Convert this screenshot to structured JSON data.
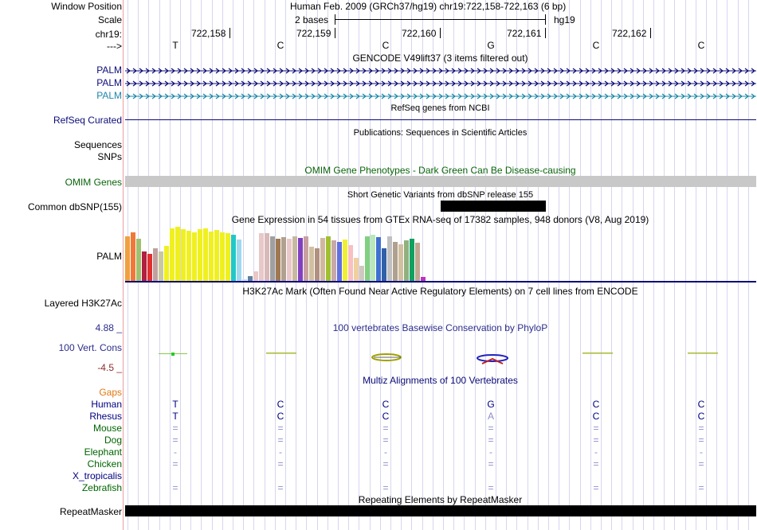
{
  "header": {
    "window_position_label": "Window Position",
    "window_position_value": "Human Feb. 2009 (GRCh37/hg19)   chr19:722,158-722,163 (6 bp)",
    "scale_label": "Scale",
    "scale_left": "2 bases",
    "scale_right": "hg19",
    "chrom_label": "chr19:",
    "strand_label": "--->",
    "positions": [
      "722,158",
      "722,159",
      "722,160",
      "722,161",
      "722,162"
    ],
    "bases": [
      "T",
      "C",
      "C",
      "G",
      "C",
      "C"
    ]
  },
  "gencode": {
    "title": "GENCODE V49lift37 (3 items filtered out)",
    "tracks": [
      {
        "label": "PALM",
        "color": "#0c0c78"
      },
      {
        "label": "PALM",
        "color": "#0c0c78"
      },
      {
        "label": "PALM",
        "color": "#1c88a8"
      }
    ]
  },
  "refseq": {
    "title": "RefSeq genes from NCBI",
    "label": "RefSeq Curated",
    "color": "#0c0c78"
  },
  "publications": {
    "title": "Publications: Sequences in Scientific Articles",
    "label1": "Sequences",
    "label2": "SNPs"
  },
  "omim": {
    "title": "OMIM Gene Phenotypes - Dark Green Can Be Disease-causing",
    "label": "OMIM Genes",
    "color": "#0a640a"
  },
  "dbsnp": {
    "title": "Short Genetic Variants from dbSNP release 155",
    "label": "Common dbSNP(155)"
  },
  "gtex": {
    "title": "Gene Expression in 54 tissues from GTEx RNA-seq of 17382 samples, 948 donors (V8, Aug 2019)",
    "label": "PALM",
    "values": [
      58,
      63,
      55,
      38,
      35,
      42,
      38,
      45,
      68,
      70,
      67,
      65,
      63,
      67,
      68,
      64,
      66,
      63,
      62,
      60,
      54,
      2,
      6,
      12,
      62,
      62,
      58,
      55,
      57,
      55,
      58,
      56,
      58,
      44,
      42,
      56,
      58,
      52,
      50,
      54,
      46,
      30,
      20,
      58,
      60,
      57,
      42,
      58,
      50,
      47,
      53,
      55,
      49,
      5
    ],
    "colors": [
      "#f0a040",
      "#f07838",
      "#a0c070",
      "#b02040",
      "#e03030",
      "#c0a0a0",
      "#c8c8a0",
      "#f0f020",
      "#f0f020",
      "#f0f020",
      "#f0f020",
      "#f0f020",
      "#f0f020",
      "#f0f020",
      "#f0f020",
      "#f0f020",
      "#f0f020",
      "#f0f020",
      "#f0f020",
      "#20c8c8",
      "#a0d8f0",
      "#c8e0f0",
      "#6080a0",
      "#e8c8c8",
      "#e8c8c8",
      "#d8b8b8",
      "#a0a0a0",
      "#a07850",
      "#b0a090",
      "#e8c8c8",
      "#c8b8a0",
      "#8040c0",
      "#c8a0a0",
      "#d0c0a0",
      "#b09080",
      "#d0b8a0",
      "#a0c030",
      "#c8a8a8",
      "#6070e0",
      "#f0f030",
      "#f8c0c0",
      "#f0d0a0",
      "#d0c8c0",
      "#80d080",
      "#b8e8b8",
      "#4070d0",
      "#3060a8",
      "#c0c0c0",
      "#b0a090",
      "#d0c0a0",
      "#90b080",
      "#10a060",
      "#c0a890",
      "#c030c0"
    ]
  },
  "h3k27ac": {
    "title": "H3K27Ac Mark (Often Found Near Active Regulatory Elements) on 7 cell lines from ENCODE",
    "label": "Layered H3K27Ac"
  },
  "cons": {
    "title": "100 vertebrates Basewise Conservation by PhyloP",
    "label": "100 Vert. Cons",
    "max": "4.88 _",
    "min": "-4.5 _"
  },
  "multiz": {
    "title": "Multiz Alignments of 100 Vertebrates",
    "gaps_label": "Gaps",
    "species": [
      {
        "name": "Human",
        "color": "#000080",
        "bases": [
          "T",
          "C",
          "C",
          "G",
          "C",
          "C"
        ]
      },
      {
        "name": "Rhesus",
        "color": "#000080",
        "bases": [
          "T",
          "C",
          "C",
          "A",
          "C",
          "C"
        ]
      },
      {
        "name": "Mouse",
        "color": "#006400",
        "bases": [
          "=",
          "=",
          "=",
          "=",
          "=",
          "="
        ]
      },
      {
        "name": "Dog",
        "color": "#006400",
        "bases": [
          "=",
          "=",
          "=",
          "=",
          "=",
          "="
        ]
      },
      {
        "name": "Elephant",
        "color": "#006400",
        "bases": [
          "-",
          "-",
          "-",
          "-",
          "-",
          "-"
        ]
      },
      {
        "name": "Chicken",
        "color": "#006400",
        "bases": [
          "=",
          "=",
          "=",
          "=",
          "=",
          "="
        ]
      },
      {
        "name": "X_tropicalis",
        "color": "#000080",
        "bases": [
          "",
          "",
          "",
          "",
          "",
          ""
        ]
      },
      {
        "name": "Zebrafish",
        "color": "#006400",
        "bases": [
          "=",
          "=",
          "=",
          "=",
          "=",
          "="
        ]
      }
    ]
  },
  "repeatmasker": {
    "title": "Repeating Elements by RepeatMasker",
    "label": "RepeatMasker"
  }
}
